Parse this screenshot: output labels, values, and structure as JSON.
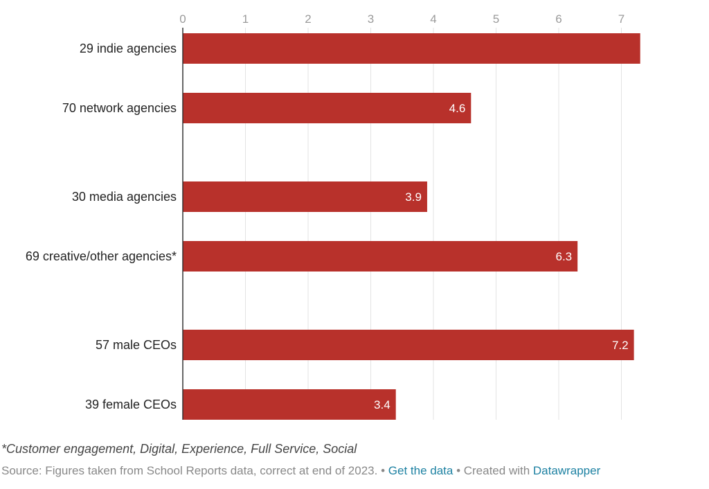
{
  "chart_data": {
    "type": "bar",
    "orientation": "horizontal",
    "categories": [
      "29 indie agencies",
      "70 network agencies",
      "30 media agencies",
      "69 creative/other agencies*",
      "57 male CEOs",
      "39 female CEOs"
    ],
    "values": [
      7.3,
      4.6,
      3.9,
      6.3,
      7.2,
      3.4
    ],
    "value_labels": [
      "",
      "4.6",
      "3.9",
      "6.3",
      "7.2",
      "3.4"
    ],
    "groups": [
      [
        0,
        1
      ],
      [
        2,
        3
      ],
      [
        4,
        5
      ]
    ],
    "xlim": [
      0,
      7.3
    ],
    "xticks": [
      "0",
      "1",
      "2",
      "3",
      "4",
      "5",
      "6",
      "7"
    ],
    "xaxis_position": "top",
    "grid": true,
    "bar_color": "#b8312b"
  },
  "footer": {
    "note": "*Customer engagement, Digital, Experience, Full Service, Social",
    "source": "Source: Figures taken from School Reports data, correct at end of 2023.",
    "sep1": " • ",
    "get_data": "Get the data",
    "sep2": " • Created with ",
    "datawrapper": "Datawrapper"
  }
}
